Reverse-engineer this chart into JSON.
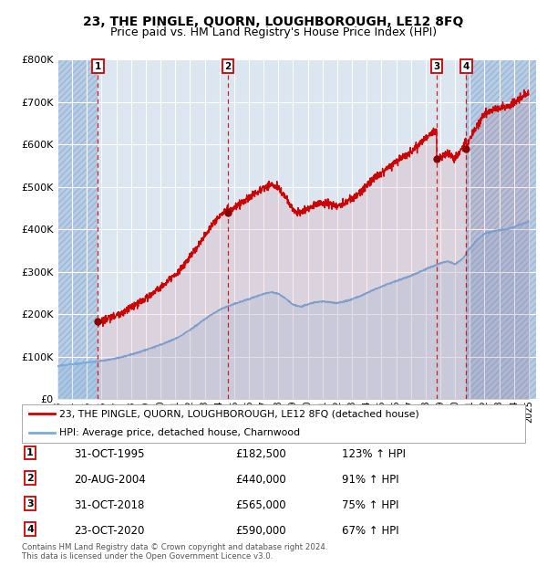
{
  "title": "23, THE PINGLE, QUORN, LOUGHBOROUGH, LE12 8FQ",
  "subtitle": "Price paid vs. HM Land Registry's House Price Index (HPI)",
  "legend_label_red": "23, THE PINGLE, QUORN, LOUGHBOROUGH, LE12 8FQ (detached house)",
  "legend_label_blue": "HPI: Average price, detached house, Charnwood",
  "footer_line1": "Contains HM Land Registry data © Crown copyright and database right 2024.",
  "footer_line2": "This data is licensed under the Open Government Licence v3.0.",
  "sales": [
    {
      "id": 1,
      "date_num": 1995.75,
      "price": 182500,
      "pct": "123%",
      "dir": "↑"
    },
    {
      "id": 2,
      "date_num": 2004.583,
      "price": 440000,
      "pct": "91%",
      "dir": "↑"
    },
    {
      "id": 3,
      "date_num": 2018.75,
      "price": 565000,
      "pct": "75%",
      "dir": "↑"
    },
    {
      "id": 4,
      "date_num": 2020.75,
      "price": 590000,
      "pct": "67%",
      "dir": "↑"
    }
  ],
  "sale_labels": [
    "31-OCT-1995",
    "20-AUG-2004",
    "31-OCT-2018",
    "23-OCT-2020"
  ],
  "sale_prices_fmt": [
    "£182,500",
    "£440,000",
    "£565,000",
    "£590,000"
  ],
  "sale_pct_fmt": [
    "123%",
    "91%",
    "75%",
    "67%"
  ],
  "ylim": [
    0,
    800000
  ],
  "yticks": [
    0,
    100000,
    200000,
    300000,
    400000,
    500000,
    600000,
    700000,
    800000
  ],
  "ytick_labels": [
    "£0",
    "£100K",
    "£200K",
    "£300K",
    "£400K",
    "£500K",
    "£600K",
    "£700K",
    "£800K"
  ],
  "xmin": 1993.0,
  "xmax": 2025.5,
  "bg_color": "#dce6f1",
  "hatch_color": "#b8cce4",
  "red_line_color": "#cc0000",
  "blue_line_color": "#7aacdc",
  "vline_color": "#cc0000",
  "grid_color": "#ffffff",
  "sale_marker_color": "#880000",
  "title_fontsize": 10,
  "subtitle_fontsize": 9
}
